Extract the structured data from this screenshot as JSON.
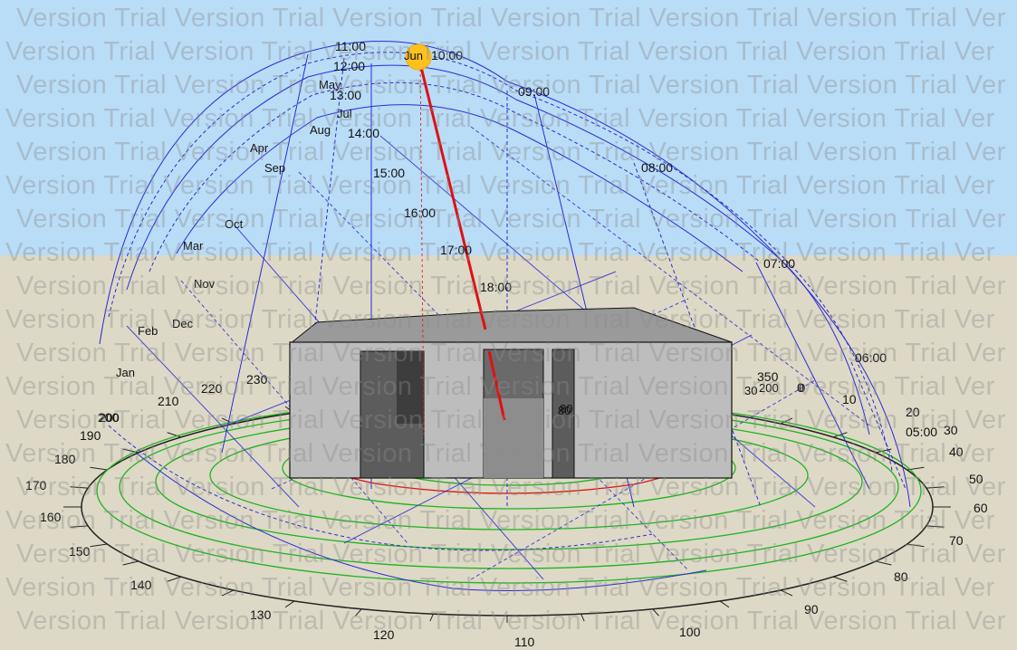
{
  "colors": {
    "sky": "#b9dcf7",
    "ground": "#ddd9c6",
    "sunpath": "#2b2bd6",
    "horizon_rings": "#1fb31f",
    "sun": "#ffc21c",
    "sun_ray": "#e01010",
    "building": "#bdbdbd",
    "shadow_outline": "#e01010"
  },
  "watermark_text": "Version Trial Version Trial Version Trial Version Trial Version Trial Version Trial Ver",
  "hour_labels": [
    "05:00",
    "06:00",
    "07:00",
    "08:00",
    "09:00",
    "10:00",
    "11:00",
    "12:00",
    "13:00",
    "14:00",
    "15:00",
    "16:00",
    "17:00",
    "18:00"
  ],
  "month_labels": [
    "Jan",
    "Feb",
    "Mar",
    "Apr",
    "May",
    "Jun",
    "Jul",
    "Aug",
    "Sep",
    "Oct",
    "Nov",
    "Dec"
  ],
  "azimuth_labels": [
    "0",
    "10",
    "20",
    "30",
    "40",
    "50",
    "60",
    "70",
    "80",
    "90",
    "100",
    "110",
    "120",
    "130",
    "140",
    "150",
    "160",
    "170",
    "180",
    "190",
    "200",
    "210",
    "220",
    "230",
    "350"
  ],
  "inner_azimuth_labels": [
    "0",
    "30",
    "80",
    "80",
    "200",
    "200"
  ],
  "icons": {
    "sun": "sun-icon"
  }
}
